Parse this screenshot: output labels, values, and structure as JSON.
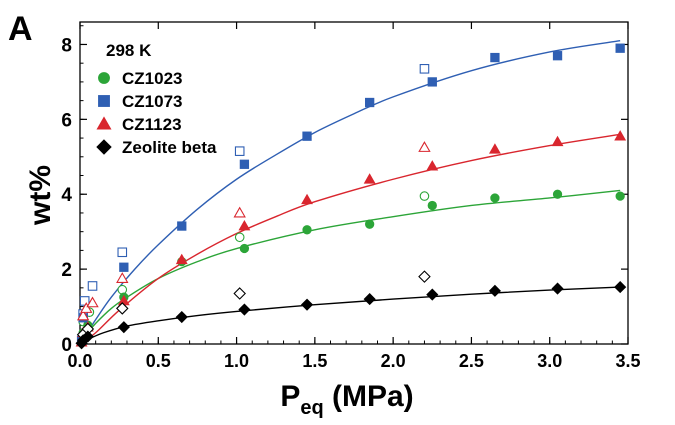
{
  "chart_data": {
    "type": "scatter",
    "panel_label": "A",
    "annotation": "298 K",
    "xlabel_main": "P",
    "xlabel_sub": "eq",
    "xlabel_unit": " (MPa)",
    "ylabel": "wt%",
    "xlim": [
      0,
      3.5
    ],
    "ylim": [
      0,
      8.6
    ],
    "xticks": [
      0.0,
      0.5,
      1.0,
      1.5,
      2.0,
      2.5,
      3.0,
      3.5
    ],
    "xtick_labels": [
      "0.0",
      "0.5",
      "1.0",
      "1.5",
      "2.0",
      "2.5",
      "3.0",
      "3.5"
    ],
    "yticks": [
      0,
      2,
      4,
      6,
      8
    ],
    "ytick_labels": [
      "0",
      "2",
      "4",
      "6",
      "8"
    ],
    "grid": false,
    "legend_position": "top-left",
    "series": [
      {
        "name": "CZ1023",
        "marker": "circle",
        "color": "#2ca538",
        "adsorption": [
          [
            0.01,
            0.05
          ],
          [
            0.02,
            0.3
          ],
          [
            0.05,
            0.5
          ],
          [
            0.28,
            1.25
          ],
          [
            0.65,
            2.2
          ],
          [
            1.05,
            2.55
          ],
          [
            1.45,
            3.05
          ],
          [
            1.85,
            3.2
          ],
          [
            2.25,
            3.7
          ],
          [
            2.65,
            3.9
          ],
          [
            3.05,
            4.0
          ],
          [
            3.45,
            3.95
          ]
        ],
        "desorption": [
          [
            0.02,
            0.6
          ],
          [
            0.06,
            0.85
          ],
          [
            0.27,
            1.45
          ],
          [
            1.02,
            2.85
          ],
          [
            2.2,
            3.95
          ]
        ],
        "fit": [
          [
            0,
            0
          ],
          [
            0.05,
            0.3
          ],
          [
            0.1,
            0.55
          ],
          [
            0.2,
            0.95
          ],
          [
            0.3,
            1.25
          ],
          [
            0.5,
            1.75
          ],
          [
            0.75,
            2.2
          ],
          [
            1,
            2.55
          ],
          [
            1.5,
            3.05
          ],
          [
            2,
            3.4
          ],
          [
            2.5,
            3.7
          ],
          [
            3,
            3.9
          ],
          [
            3.45,
            4.1
          ]
        ]
      },
      {
        "name": "CZ1073",
        "marker": "square",
        "color": "#2f5fb3",
        "adsorption": [
          [
            0.01,
            0.1
          ],
          [
            0.02,
            0.7
          ],
          [
            0.28,
            2.05
          ],
          [
            0.65,
            3.15
          ],
          [
            1.05,
            4.8
          ],
          [
            1.45,
            5.55
          ],
          [
            1.85,
            6.45
          ],
          [
            2.25,
            7.0
          ],
          [
            2.65,
            7.65
          ],
          [
            3.05,
            7.7
          ],
          [
            3.45,
            7.9
          ]
        ],
        "desorption": [
          [
            0.02,
            0.8
          ],
          [
            0.03,
            1.15
          ],
          [
            0.08,
            1.55
          ],
          [
            0.27,
            2.45
          ],
          [
            1.02,
            5.15
          ],
          [
            2.2,
            7.35
          ]
        ],
        "fit": [
          [
            0,
            0
          ],
          [
            0.1,
            0.65
          ],
          [
            0.2,
            1.25
          ],
          [
            0.35,
            2.0
          ],
          [
            0.5,
            2.65
          ],
          [
            0.75,
            3.6
          ],
          [
            1,
            4.4
          ],
          [
            1.25,
            5.05
          ],
          [
            1.5,
            5.65
          ],
          [
            1.75,
            6.15
          ],
          [
            2,
            6.6
          ],
          [
            2.5,
            7.3
          ],
          [
            3,
            7.8
          ],
          [
            3.45,
            8.1
          ]
        ]
      },
      {
        "name": "CZ1123",
        "marker": "triangle",
        "color": "#d9262e",
        "adsorption": [
          [
            0.01,
            0.05
          ],
          [
            0.02,
            0.3
          ],
          [
            0.05,
            0.45
          ],
          [
            0.28,
            1.15
          ],
          [
            0.65,
            2.25
          ],
          [
            1.05,
            3.15
          ],
          [
            1.45,
            3.85
          ],
          [
            1.85,
            4.4
          ],
          [
            2.25,
            4.75
          ],
          [
            2.65,
            5.2
          ],
          [
            3.05,
            5.4
          ],
          [
            3.45,
            5.55
          ]
        ],
        "desorption": [
          [
            0.02,
            0.75
          ],
          [
            0.04,
            0.95
          ],
          [
            0.08,
            1.1
          ],
          [
            0.27,
            1.75
          ],
          [
            1.02,
            3.5
          ],
          [
            2.2,
            5.25
          ]
        ],
        "fit": [
          [
            0,
            0
          ],
          [
            0.1,
            0.3
          ],
          [
            0.25,
            0.9
          ],
          [
            0.5,
            1.75
          ],
          [
            0.75,
            2.4
          ],
          [
            1,
            2.95
          ],
          [
            1.25,
            3.4
          ],
          [
            1.5,
            3.8
          ],
          [
            2,
            4.4
          ],
          [
            2.5,
            4.9
          ],
          [
            3,
            5.3
          ],
          [
            3.45,
            5.6
          ]
        ]
      },
      {
        "name": "Zeolite beta",
        "marker": "diamond",
        "color": "#000000",
        "adsorption": [
          [
            0.01,
            0.02
          ],
          [
            0.02,
            0.1
          ],
          [
            0.05,
            0.2
          ],
          [
            0.28,
            0.45
          ],
          [
            0.65,
            0.72
          ],
          [
            1.05,
            0.92
          ],
          [
            1.45,
            1.05
          ],
          [
            1.85,
            1.2
          ],
          [
            2.25,
            1.32
          ],
          [
            2.65,
            1.42
          ],
          [
            3.05,
            1.48
          ],
          [
            3.45,
            1.52
          ]
        ],
        "desorption": [
          [
            0.02,
            0.25
          ],
          [
            0.05,
            0.4
          ],
          [
            0.27,
            0.95
          ],
          [
            1.02,
            1.35
          ],
          [
            2.2,
            1.8
          ]
        ],
        "fit": [
          [
            0,
            0
          ],
          [
            0.05,
            0.12
          ],
          [
            0.15,
            0.3
          ],
          [
            0.3,
            0.48
          ],
          [
            0.5,
            0.62
          ],
          [
            0.75,
            0.76
          ],
          [
            1,
            0.87
          ],
          [
            1.5,
            1.05
          ],
          [
            2,
            1.2
          ],
          [
            2.5,
            1.33
          ],
          [
            3,
            1.44
          ],
          [
            3.45,
            1.52
          ]
        ]
      }
    ]
  }
}
